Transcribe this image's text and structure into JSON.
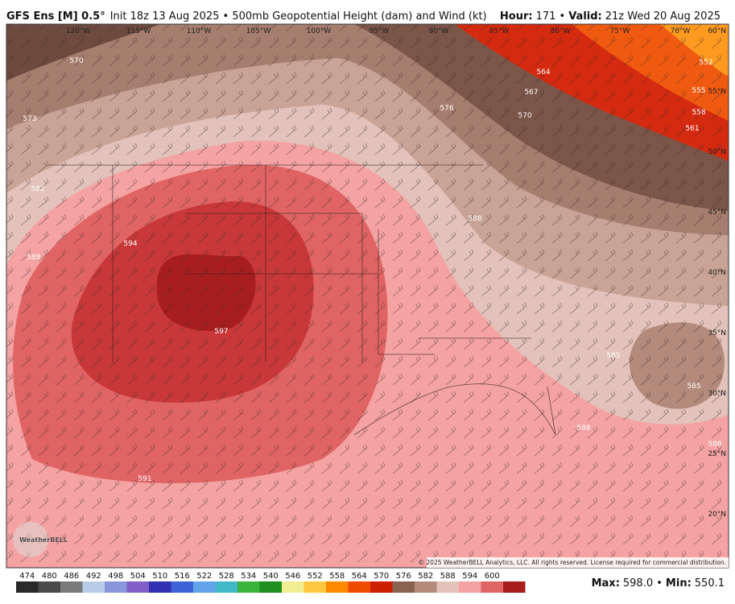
{
  "header": {
    "model": "GFS Ens [M] 0.5°",
    "description": "Init 18z 13 Aug 2025 • 500mb Geopotential Height (dam) and Wind (kt)",
    "hour_label": "Hour:",
    "hour": "171 •",
    "valid_label": "Valid:",
    "valid": "21z Wed 20 Aug 2025"
  },
  "map": {
    "longitude_labels": [
      "120°W",
      "115°W",
      "110°W",
      "105°W",
      "100°W",
      "95°W",
      "90°W",
      "85°W",
      "80°W",
      "75°W",
      "70°W"
    ],
    "latitude_labels": [
      "60°N",
      "55°N",
      "50°N",
      "45°N",
      "40°N",
      "35°N",
      "30°N",
      "25°N",
      "20°N"
    ],
    "contour_labels": [
      570,
      573,
      576,
      570,
      567,
      564,
      561,
      558,
      555,
      552,
      588,
      594,
      588,
      597,
      591,
      585,
      585,
      588,
      588,
      582
    ],
    "copyright": "© 2025 WeatherBELL Analytics, LLC. All rights reserved. License required for commercial distribution.",
    "logo": "WeatherBELL"
  },
  "legend": {
    "labels": [
      474,
      480,
      486,
      492,
      498,
      504,
      510,
      516,
      522,
      528,
      534,
      540,
      546,
      552,
      558,
      564,
      570,
      576,
      582,
      588,
      594,
      600
    ],
    "colors": [
      "#2a2a2a",
      "#4a4a4a",
      "#7a7a7a",
      "#b8cce8",
      "#8a96dc",
      "#8060c8",
      "#3030b0",
      "#3e62d8",
      "#62a4ec",
      "#40b8c8",
      "#3cb43c",
      "#1e8e1e",
      "#f0ee90",
      "#ffc840",
      "#ff8a00",
      "#ee4a00",
      "#cc2000",
      "#8a6252",
      "#b48a7a",
      "#e2c2ba",
      "#f4a2a2",
      "#e06464",
      "#a81c1c"
    ]
  },
  "stats": {
    "max_label": "Max:",
    "max": "598.0 •",
    "min_label": "Min:",
    "min": "550.1"
  }
}
